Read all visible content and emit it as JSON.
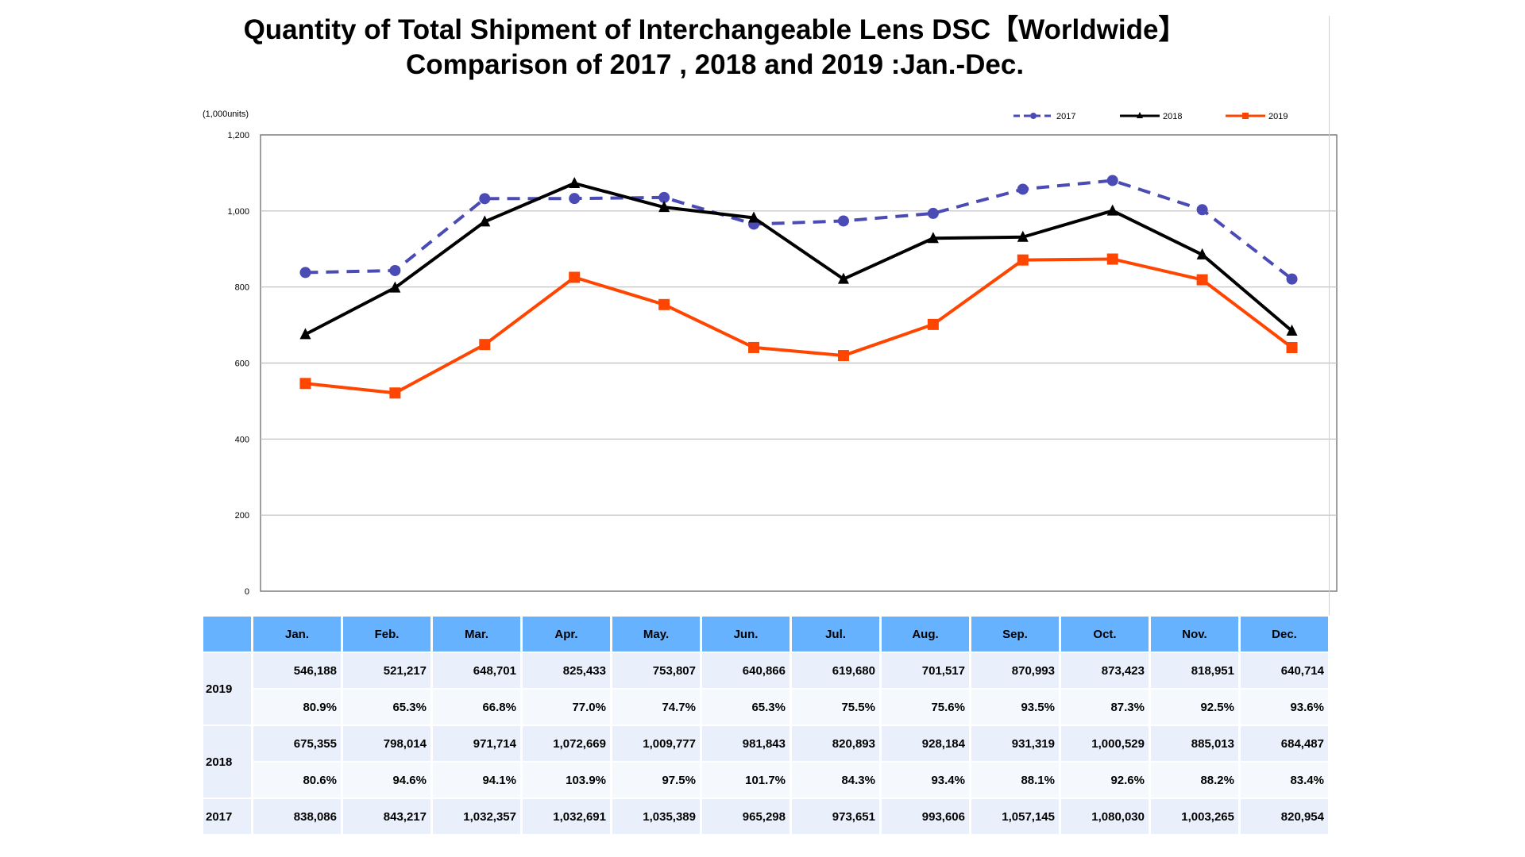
{
  "title_line1": "Quantity of Total Shipment of Interchangeable Lens DSC【Worldwide】",
  "title_line2": "Comparison of 2017 , 2018 and 2019 :Jan.-Dec.",
  "chart_data": {
    "type": "line",
    "title": "Quantity of Total Shipment of Interchangeable Lens DSC【Worldwide】 Comparison of 2017 , 2018 and 2019 :Jan.-Dec.",
    "ylabel": "(1,000units)",
    "ylim": [
      0,
      1200
    ],
    "yticks": [
      0,
      200,
      400,
      600,
      800,
      1000,
      1200
    ],
    "ytick_labels": [
      "0",
      "200",
      "400",
      "600",
      "800",
      "1,000",
      "1,200"
    ],
    "grid": true,
    "legend_position": "top-right",
    "categories": [
      "Jan.",
      "Feb.",
      "Mar.",
      "Apr.",
      "May.",
      "Jun.",
      "Jul.",
      "Aug.",
      "Sep.",
      "Oct.",
      "Nov.",
      "Dec."
    ],
    "series": [
      {
        "name": "2017",
        "color": "#4b4bb5",
        "style": "dashed",
        "marker": "circle",
        "values": [
          838.086,
          843.217,
          1032.357,
          1032.691,
          1035.389,
          965.298,
          973.651,
          993.606,
          1057.145,
          1080.03,
          1003.265,
          820.954
        ]
      },
      {
        "name": "2018",
        "color": "#000000",
        "style": "solid",
        "marker": "triangle",
        "values": [
          675.355,
          798.014,
          971.714,
          1072.669,
          1009.777,
          981.843,
          820.893,
          928.184,
          931.319,
          1000.529,
          885.013,
          684.487
        ]
      },
      {
        "name": "2019",
        "color": "#ff4500",
        "style": "solid",
        "marker": "square",
        "values": [
          546.188,
          521.217,
          648.701,
          825.433,
          753.807,
          640.866,
          619.68,
          701.517,
          870.993,
          873.423,
          818.951,
          640.714
        ]
      }
    ]
  },
  "table": {
    "months": [
      "Jan.",
      "Feb.",
      "Mar.",
      "Apr.",
      "May.",
      "Jun.",
      "Jul.",
      "Aug.",
      "Sep.",
      "Oct.",
      "Nov.",
      "Dec."
    ],
    "rows": [
      {
        "year": "2019",
        "values": [
          "546,188",
          "521,217",
          "648,701",
          "825,433",
          "753,807",
          "640,866",
          "619,680",
          "701,517",
          "870,993",
          "873,423",
          "818,951",
          "640,714"
        ],
        "percents": [
          "80.9%",
          "65.3%",
          "66.8%",
          "77.0%",
          "74.7%",
          "65.3%",
          "75.5%",
          "75.6%",
          "93.5%",
          "87.3%",
          "92.5%",
          "93.6%"
        ]
      },
      {
        "year": "2018",
        "values": [
          "675,355",
          "798,014",
          "971,714",
          "1,072,669",
          "1,009,777",
          "981,843",
          "820,893",
          "928,184",
          "931,319",
          "1,000,529",
          "885,013",
          "684,487"
        ],
        "percents": [
          "80.6%",
          "94.6%",
          "94.1%",
          "103.9%",
          "97.5%",
          "101.7%",
          "84.3%",
          "93.4%",
          "88.1%",
          "92.6%",
          "88.2%",
          "83.4%"
        ]
      },
      {
        "year": "2017",
        "values": [
          "838,086",
          "843,217",
          "1,032,357",
          "1,032,691",
          "1,035,389",
          "965,298",
          "973,651",
          "993,606",
          "1,057,145",
          "1,080,030",
          "1,003,265",
          "820,954"
        ]
      }
    ]
  }
}
